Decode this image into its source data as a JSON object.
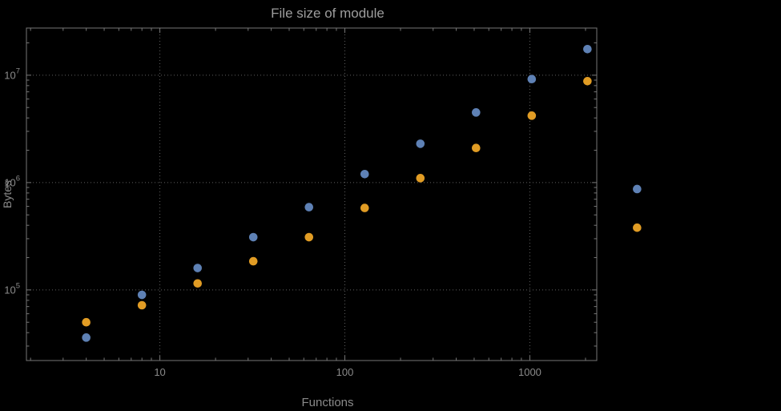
{
  "chart_data": {
    "type": "scatter",
    "title": "File size of module",
    "xlabel": "Functions",
    "ylabel": "Bytes",
    "x_scale": "log",
    "y_scale": "log",
    "xlim": [
      1.9,
      2300
    ],
    "ylim": [
      22000,
      27500000
    ],
    "grid": "dotted",
    "legend": "none",
    "x_ticks": [
      {
        "value": 10,
        "label": "10"
      },
      {
        "value": 100,
        "label": "100"
      },
      {
        "value": 1000,
        "label": "1000"
      }
    ],
    "y_ticks": [
      {
        "value": 100000,
        "base": "10",
        "exp": "5"
      },
      {
        "value": 1000000,
        "base": "10",
        "exp": "6"
      },
      {
        "value": 10000000,
        "base": "10",
        "exp": "7"
      }
    ],
    "colors": {
      "background": "#000000",
      "frame": "#767676",
      "grid": "#5f5f5f",
      "tick_text": "#8a8a8a",
      "axis_text": "#8a8a8a",
      "title_text": "#9d9d9d"
    },
    "series": [
      {
        "name": "blue",
        "color": "#5e81b5",
        "points": [
          [
            4,
            36000
          ],
          [
            8,
            90000
          ],
          [
            16,
            160000
          ],
          [
            32,
            310000
          ],
          [
            64,
            590000
          ],
          [
            128,
            1200000
          ],
          [
            256,
            2300000
          ],
          [
            512,
            4500000
          ],
          [
            1024,
            9200000
          ],
          [
            2048,
            17500000
          ],
          [
            3800,
            870000
          ]
        ]
      },
      {
        "name": "orange",
        "color": "#e19c24",
        "points": [
          [
            4,
            50000
          ],
          [
            8,
            72000
          ],
          [
            16,
            115000
          ],
          [
            32,
            185000
          ],
          [
            64,
            310000
          ],
          [
            128,
            580000
          ],
          [
            256,
            1100000
          ],
          [
            512,
            2100000
          ],
          [
            1024,
            4200000
          ],
          [
            2048,
            8800000
          ],
          [
            3800,
            380000
          ]
        ]
      }
    ]
  }
}
